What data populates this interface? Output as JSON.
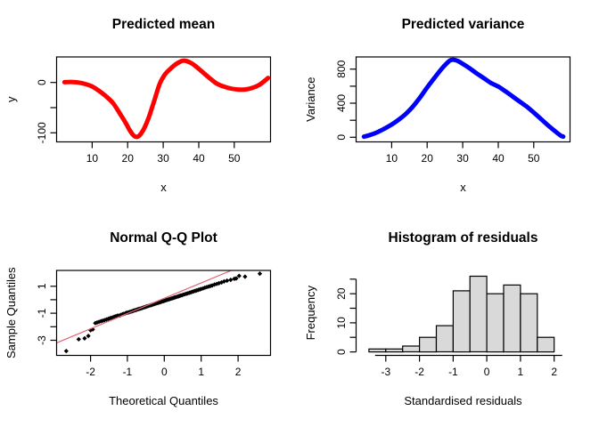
{
  "page": {
    "background": "#ffffff"
  },
  "colors": {
    "mean_curve": "#ff0000",
    "variance_curve": "#0000ff",
    "qq_points": "#000000",
    "qq_ref_line": "#df6470",
    "hist_fill": "#d9d9d9",
    "hist_border": "#000000",
    "axis": "#000000"
  },
  "chart_data": [
    {
      "id": "predicted-mean",
      "type": "line",
      "title": "Predicted mean",
      "xlabel": "x",
      "ylabel": "y",
      "box": true,
      "grid": false,
      "xlim": [
        0,
        60.2
      ],
      "ylim": [
        -118,
        50.7
      ],
      "xticks": [
        10,
        20,
        30,
        40,
        50
      ],
      "xtick_labels": [
        "10",
        "20",
        "30",
        "40",
        "50"
      ],
      "yticks": [
        0,
        -50,
        -100
      ],
      "ytick_labels": [
        "0",
        "",
        "-100"
      ],
      "line_color": "#ff0000",
      "line_width": 5,
      "points": [
        [
          2.2,
          0.5
        ],
        [
          4,
          1
        ],
        [
          6,
          0
        ],
        [
          8,
          -3
        ],
        [
          10,
          -8
        ],
        [
          12,
          -17
        ],
        [
          14,
          -28
        ],
        [
          16,
          -42
        ],
        [
          18,
          -64
        ],
        [
          19.5,
          -81
        ],
        [
          20.5,
          -94
        ],
        [
          21.5,
          -104
        ],
        [
          22.3,
          -108
        ],
        [
          23.2,
          -106
        ],
        [
          24.5,
          -93
        ],
        [
          26,
          -68
        ],
        [
          27.5,
          -36
        ],
        [
          29,
          -3
        ],
        [
          30.5,
          16
        ],
        [
          32,
          27
        ],
        [
          33.5,
          36
        ],
        [
          35,
          42
        ],
        [
          36,
          43.5
        ],
        [
          37.5,
          40
        ],
        [
          39,
          33
        ],
        [
          41,
          21
        ],
        [
          43,
          9
        ],
        [
          45,
          -2
        ],
        [
          47,
          -8
        ],
        [
          49,
          -12
        ],
        [
          51,
          -14
        ],
        [
          53,
          -14
        ],
        [
          55,
          -11
        ],
        [
          57,
          -5
        ],
        [
          58.5,
          3
        ],
        [
          59.5,
          9
        ]
      ]
    },
    {
      "id": "predicted-variance",
      "type": "line",
      "title": "Predicted variance",
      "xlabel": "x",
      "ylabel": "Variance",
      "box": true,
      "grid": false,
      "xlim": [
        0,
        60.2
      ],
      "ylim": [
        -54,
        943
      ],
      "xticks": [
        10,
        20,
        30,
        40,
        50
      ],
      "xtick_labels": [
        "10",
        "20",
        "30",
        "40",
        "50"
      ],
      "yticks": [
        0,
        200,
        400,
        600,
        800
      ],
      "ytick_labels": [
        "0",
        "",
        "400",
        "",
        "800"
      ],
      "line_color": "#0000ff",
      "line_width": 5,
      "points": [
        [
          2.2,
          8
        ],
        [
          4,
          28
        ],
        [
          6,
          60
        ],
        [
          8,
          102
        ],
        [
          10,
          150
        ],
        [
          12,
          207
        ],
        [
          14,
          275
        ],
        [
          16,
          362
        ],
        [
          18,
          468
        ],
        [
          20,
          585
        ],
        [
          22,
          695
        ],
        [
          24,
          800
        ],
        [
          25.5,
          868
        ],
        [
          26.5,
          903
        ],
        [
          27.5,
          910
        ],
        [
          28.5,
          898
        ],
        [
          30,
          862
        ],
        [
          32,
          808
        ],
        [
          34,
          748
        ],
        [
          36,
          692
        ],
        [
          38,
          636
        ],
        [
          40,
          595
        ],
        [
          42,
          540
        ],
        [
          44,
          480
        ],
        [
          46,
          420
        ],
        [
          48,
          360
        ],
        [
          50,
          290
        ],
        [
          52,
          215
        ],
        [
          54,
          140
        ],
        [
          56,
          70
        ],
        [
          57.5,
          22
        ],
        [
          58.3,
          8
        ]
      ]
    },
    {
      "id": "normal-qq-plot",
      "type": "scatter",
      "title": "Normal Q-Q Plot",
      "xlabel": "Theoretical Quantiles",
      "ylabel": "Sample Quantiles",
      "box": true,
      "grid": false,
      "xlim": [
        -2.92,
        2.88
      ],
      "ylim": [
        -4.12,
        2.17
      ],
      "xticks": [
        -2,
        -1,
        0,
        1,
        2
      ],
      "xtick_labels": [
        "-2",
        "-1",
        "0",
        "1",
        "2"
      ],
      "yticks": [
        1,
        0,
        -1,
        -2,
        -3
      ],
      "ytick_labels": [
        "1",
        "",
        "-1",
        "",
        "-3"
      ],
      "point_color": "#000000",
      "point_size": 2.6,
      "ref_line": {
        "color": "#df6470",
        "width": 1.2,
        "x1": -2.92,
        "y1": -3.19,
        "x2": 1.82,
        "y2": 2.17
      },
      "points": [
        [
          -2.66,
          -3.8
        ],
        [
          -2.32,
          -2.93
        ],
        [
          -2.16,
          -2.86
        ],
        [
          -2.06,
          -2.68
        ],
        [
          -2.0,
          -2.26
        ],
        [
          -1.94,
          -2.2
        ],
        [
          -1.87,
          -1.73
        ],
        [
          -1.82,
          -1.68
        ],
        [
          -1.77,
          -1.64
        ],
        [
          -1.72,
          -1.59
        ],
        [
          -1.67,
          -1.55
        ],
        [
          -1.62,
          -1.51
        ],
        [
          -1.57,
          -1.46
        ],
        [
          -1.52,
          -1.42
        ],
        [
          -1.48,
          -1.38
        ],
        [
          -1.44,
          -1.35
        ],
        [
          -1.4,
          -1.31
        ],
        [
          -1.36,
          -1.26
        ],
        [
          -1.32,
          -1.23
        ],
        [
          -1.28,
          -1.19
        ],
        [
          -1.24,
          -1.17
        ],
        [
          -1.2,
          -1.16
        ],
        [
          -1.17,
          -1.11
        ],
        [
          -1.13,
          -1.07
        ],
        [
          -1.1,
          -1.05
        ],
        [
          -1.06,
          -1.01
        ],
        [
          -1.03,
          -0.97
        ],
        [
          -1.0,
          -0.96
        ],
        [
          -0.97,
          -0.93
        ],
        [
          -0.93,
          -0.9
        ],
        [
          -0.9,
          -0.87
        ],
        [
          -0.87,
          -0.85
        ],
        [
          -0.84,
          -0.82
        ],
        [
          -0.81,
          -0.79
        ],
        [
          -0.78,
          -0.77
        ],
        [
          -0.75,
          -0.74
        ],
        [
          -0.72,
          -0.71
        ],
        [
          -0.69,
          -0.69
        ],
        [
          -0.66,
          -0.66
        ],
        [
          -0.63,
          -0.64
        ],
        [
          -0.6,
          -0.61
        ],
        [
          -0.57,
          -0.58
        ],
        [
          -0.54,
          -0.56
        ],
        [
          -0.51,
          -0.53
        ],
        [
          -0.48,
          -0.5
        ],
        [
          -0.45,
          -0.48
        ],
        [
          -0.42,
          -0.45
        ],
        [
          -0.39,
          -0.42
        ],
        [
          -0.36,
          -0.4
        ],
        [
          -0.33,
          -0.37
        ],
        [
          -0.3,
          -0.34
        ],
        [
          -0.27,
          -0.32
        ],
        [
          -0.24,
          -0.29
        ],
        [
          -0.21,
          -0.26
        ],
        [
          -0.18,
          -0.24
        ],
        [
          -0.15,
          -0.21
        ],
        [
          -0.12,
          -0.19
        ],
        [
          -0.09,
          -0.16
        ],
        [
          -0.06,
          -0.13
        ],
        [
          -0.03,
          -0.11
        ],
        [
          0.0,
          -0.08
        ],
        [
          0.03,
          -0.05
        ],
        [
          0.06,
          -0.03
        ],
        [
          0.09,
          0.0
        ],
        [
          0.12,
          0.03
        ],
        [
          0.15,
          0.05
        ],
        [
          0.18,
          0.08
        ],
        [
          0.21,
          0.1
        ],
        [
          0.24,
          0.13
        ],
        [
          0.27,
          0.16
        ],
        [
          0.3,
          0.18
        ],
        [
          0.33,
          0.21
        ],
        [
          0.36,
          0.24
        ],
        [
          0.39,
          0.26
        ],
        [
          0.42,
          0.29
        ],
        [
          0.45,
          0.32
        ],
        [
          0.48,
          0.34
        ],
        [
          0.52,
          0.38
        ],
        [
          0.56,
          0.41
        ],
        [
          0.6,
          0.45
        ],
        [
          0.64,
          0.48
        ],
        [
          0.68,
          0.52
        ],
        [
          0.72,
          0.55
        ],
        [
          0.76,
          0.59
        ],
        [
          0.8,
          0.62
        ],
        [
          0.84,
          0.66
        ],
        [
          0.88,
          0.69
        ],
        [
          0.92,
          0.73
        ],
        [
          0.96,
          0.76
        ],
        [
          1.0,
          0.8
        ],
        [
          1.05,
          0.84
        ],
        [
          1.1,
          0.89
        ],
        [
          1.15,
          0.93
        ],
        [
          1.2,
          0.98
        ],
        [
          1.25,
          1.02
        ],
        [
          1.3,
          1.06
        ],
        [
          1.36,
          1.12
        ],
        [
          1.42,
          1.17
        ],
        [
          1.48,
          1.22
        ],
        [
          1.55,
          1.28
        ],
        [
          1.62,
          1.35
        ],
        [
          1.7,
          1.41
        ],
        [
          1.8,
          1.47
        ],
        [
          1.9,
          1.55
        ],
        [
          1.95,
          1.58
        ],
        [
          2.03,
          1.77
        ],
        [
          2.19,
          1.71
        ],
        [
          2.59,
          1.93
        ]
      ]
    },
    {
      "id": "histogram-of-residuals",
      "type": "histogram",
      "title": "Histogram of residuals",
      "xlabel": "Standardised residuals",
      "ylabel": "Frequency",
      "box": false,
      "grid": false,
      "xlim": [
        -3.88,
        2.47
      ],
      "ylim": [
        -1.2,
        28
      ],
      "xticks": [
        -3,
        -2,
        -1,
        0,
        1,
        2
      ],
      "xtick_labels": [
        "-3",
        "-2",
        "-1",
        "0",
        "1",
        "2"
      ],
      "yticks": [
        0,
        5,
        10,
        15,
        20,
        25
      ],
      "ytick_labels": [
        "0",
        "",
        "10",
        "",
        "20",
        ""
      ],
      "bin_start": -3.5,
      "bin_width": 0.5,
      "counts": [
        1,
        1,
        2,
        5,
        9,
        21,
        26,
        20,
        23,
        20,
        5
      ],
      "fill": "#d9d9d9",
      "border": "#000000"
    }
  ]
}
